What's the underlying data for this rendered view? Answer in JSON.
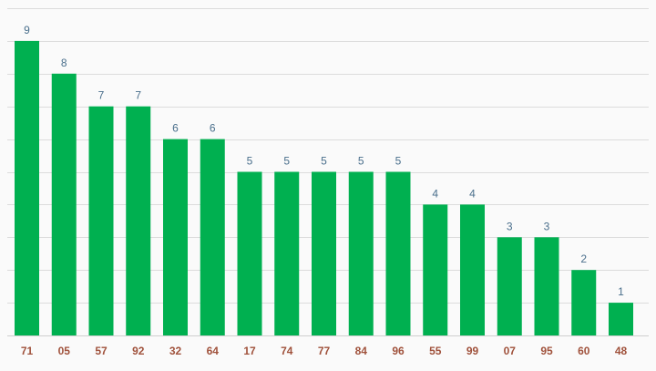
{
  "chart_data": {
    "type": "bar",
    "categories": [
      "71",
      "05",
      "57",
      "92",
      "32",
      "64",
      "17",
      "74",
      "77",
      "84",
      "96",
      "55",
      "99",
      "07",
      "95",
      "60",
      "48"
    ],
    "values": [
      9,
      8,
      7,
      7,
      6,
      6,
      5,
      5,
      5,
      5,
      5,
      4,
      4,
      3,
      3,
      2,
      1
    ],
    "ylim": [
      0,
      10
    ],
    "y_gridlines_every": 1,
    "grid": true,
    "legend": "none",
    "colors": {
      "bar": "#00b050",
      "value_label": "#4a6f8c",
      "category_label": "#a0523c",
      "gridline": "#dcdcdc",
      "background": "#fafafa"
    }
  }
}
